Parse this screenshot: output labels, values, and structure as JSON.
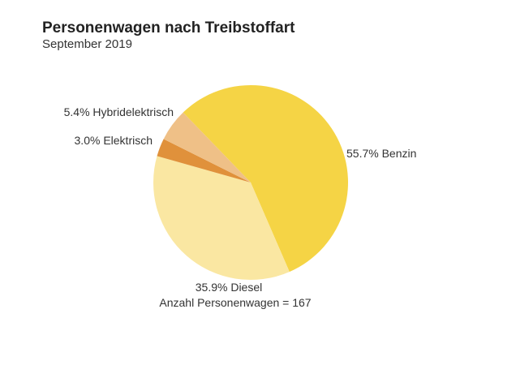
{
  "chart_data": {
    "type": "pie",
    "title": "Personenwagen nach Treibstoffart",
    "subtitle": "September 2019",
    "slices": [
      {
        "label": "Benzin",
        "value": 55.7,
        "display": "55.7%  Benzin",
        "color": "#f5d445"
      },
      {
        "label": "Diesel",
        "value": 35.9,
        "display": "35.9%  Diesel",
        "color": "#fae7a2"
      },
      {
        "label": "Elektrisch",
        "value": 3.0,
        "display": "3.0%  Elektrisch",
        "color": "#e0913b"
      },
      {
        "label": "Hybridelektrisch",
        "value": 5.4,
        "display": "5.4% Hybridelektrisch",
        "color": "#efc087"
      }
    ],
    "annotation": "Anzahl Personenwagen = 167"
  }
}
